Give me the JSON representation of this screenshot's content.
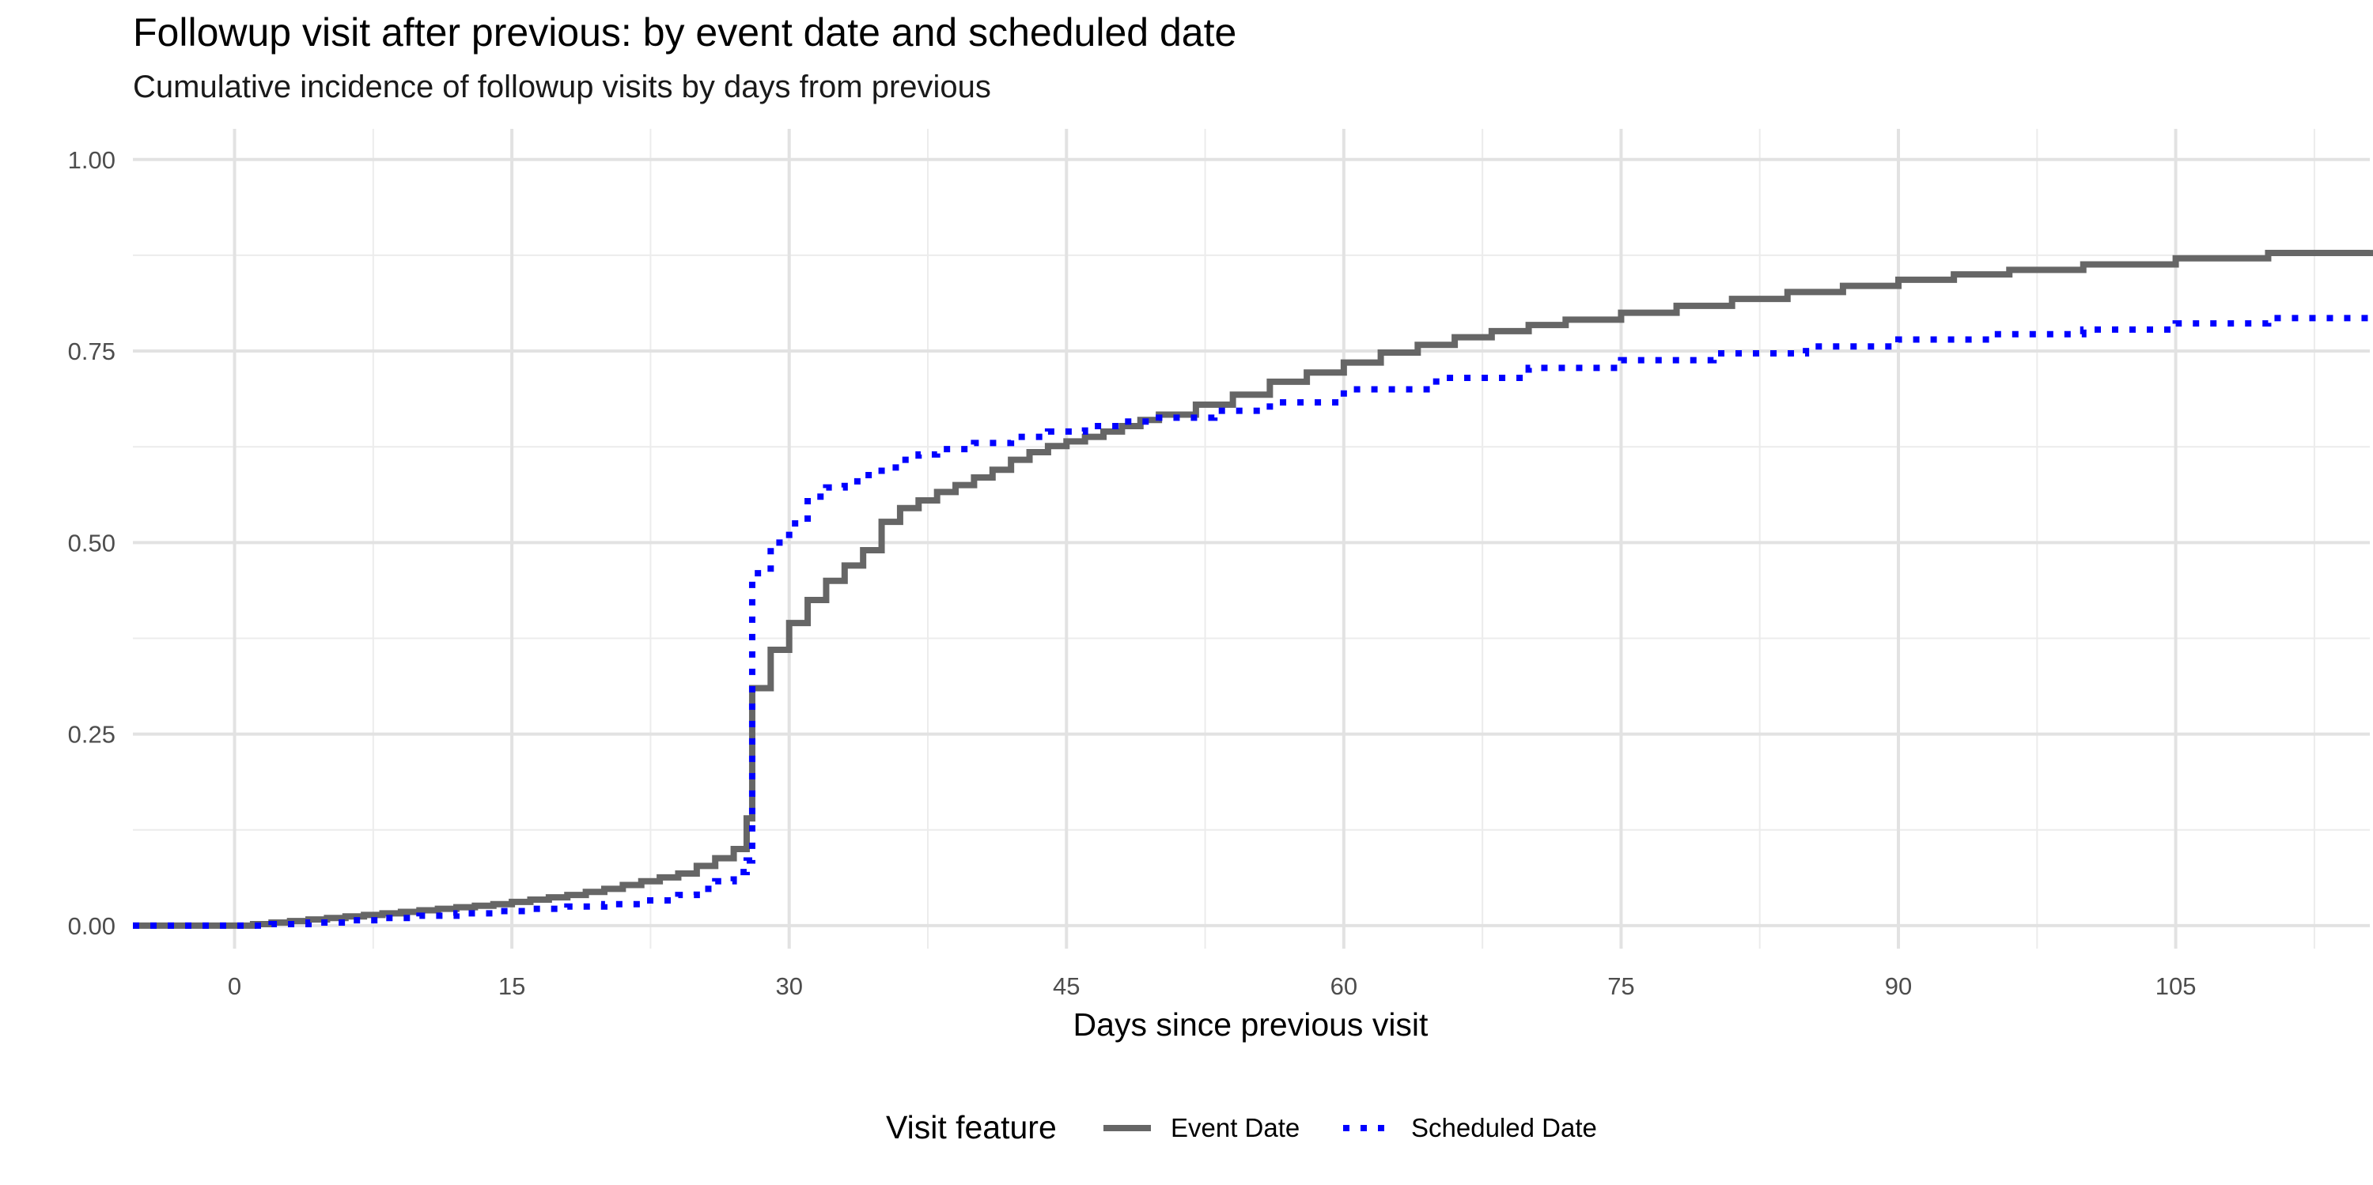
{
  "chart_data": {
    "type": "line",
    "title": "Followup visit after previous: by event date and scheduled date",
    "subtitle": "Cumulative incidence of followup visits by days from previous",
    "xlabel": "Days since previous visit",
    "ylabel": "",
    "xlim": [
      -5.5,
      115.5
    ],
    "ylim": [
      -0.03,
      1.04
    ],
    "x_ticks": [
      0,
      15,
      30,
      45,
      60,
      75,
      90,
      105
    ],
    "x_minor_ticks": [
      7.5,
      22.5,
      37.5,
      52.5,
      67.5,
      82.5,
      97.5,
      112.5
    ],
    "y_ticks": [
      0.0,
      0.25,
      0.5,
      0.75,
      1.0
    ],
    "y_tick_labels": [
      "0.00",
      "0.25",
      "0.50",
      "0.75",
      "1.00"
    ],
    "y_minor_ticks": [
      0.125,
      0.375,
      0.625,
      0.875
    ],
    "grid": true,
    "legend": {
      "title": "Visit feature",
      "position": "bottom"
    },
    "step": true,
    "series": [
      {
        "name": "Event Date",
        "color": "#666666",
        "style": "solid",
        "x": [
          -5.5,
          0,
          1,
          2,
          3,
          4,
          5,
          6,
          7,
          8,
          9,
          10,
          11,
          12,
          13,
          14,
          15,
          16,
          17,
          18,
          19,
          20,
          21,
          22,
          23,
          24,
          25,
          26,
          27,
          27.7,
          28,
          29,
          30,
          31,
          32,
          33,
          34,
          35,
          36,
          37,
          38,
          39,
          40,
          41,
          42,
          43,
          44,
          45,
          46,
          47,
          48,
          49,
          50,
          52,
          54,
          56,
          58,
          60,
          62,
          64,
          66,
          68,
          70,
          72,
          75,
          78,
          81,
          84,
          87,
          90,
          93,
          96,
          100,
          105,
          110,
          115.5
        ],
        "y": [
          0.0,
          0.0,
          0.002,
          0.004,
          0.006,
          0.008,
          0.01,
          0.012,
          0.014,
          0.016,
          0.018,
          0.02,
          0.022,
          0.024,
          0.026,
          0.028,
          0.031,
          0.034,
          0.037,
          0.04,
          0.044,
          0.048,
          0.053,
          0.058,
          0.063,
          0.068,
          0.078,
          0.088,
          0.1,
          0.14,
          0.31,
          0.36,
          0.395,
          0.425,
          0.45,
          0.47,
          0.49,
          0.527,
          0.545,
          0.555,
          0.566,
          0.575,
          0.585,
          0.595,
          0.608,
          0.618,
          0.626,
          0.632,
          0.638,
          0.645,
          0.652,
          0.66,
          0.667,
          0.68,
          0.693,
          0.71,
          0.722,
          0.735,
          0.748,
          0.758,
          0.768,
          0.776,
          0.784,
          0.791,
          0.8,
          0.809,
          0.818,
          0.827,
          0.835,
          0.843,
          0.85,
          0.856,
          0.863,
          0.871,
          0.878,
          0.882
        ]
      },
      {
        "name": "Scheduled Date",
        "color": "#0000ff",
        "style": "dotted",
        "x": [
          -5.5,
          0,
          2,
          4,
          6,
          8,
          10,
          12,
          14,
          16,
          18,
          20,
          22,
          24,
          25,
          26,
          27,
          27.7,
          28,
          29,
          30,
          31,
          32,
          33,
          34,
          35,
          36,
          37,
          38,
          40,
          42,
          44,
          46,
          48,
          50,
          53,
          56,
          60,
          65,
          70,
          75,
          80,
          85,
          90,
          95,
          100,
          105,
          110,
          115.5
        ],
        "y": [
          0.0,
          0.0,
          0.002,
          0.004,
          0.007,
          0.01,
          0.013,
          0.016,
          0.019,
          0.022,
          0.025,
          0.028,
          0.033,
          0.04,
          0.048,
          0.058,
          0.07,
          0.085,
          0.46,
          0.5,
          0.525,
          0.56,
          0.572,
          0.58,
          0.588,
          0.598,
          0.608,
          0.615,
          0.622,
          0.63,
          0.638,
          0.645,
          0.652,
          0.658,
          0.663,
          0.672,
          0.683,
          0.7,
          0.715,
          0.728,
          0.738,
          0.747,
          0.756,
          0.765,
          0.772,
          0.778,
          0.786,
          0.793,
          0.8
        ]
      }
    ]
  }
}
